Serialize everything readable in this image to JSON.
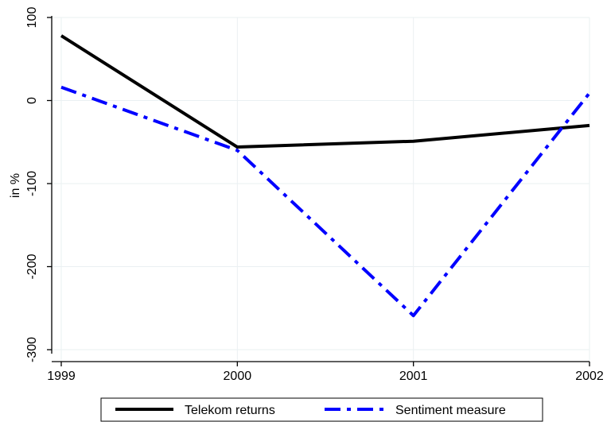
{
  "chart_data": {
    "type": "line",
    "title": "",
    "xlabel": "",
    "ylabel": "in %",
    "x": [
      1999,
      2000,
      2001,
      2002
    ],
    "xticks": [
      "1999",
      "2000",
      "2001",
      "2002"
    ],
    "yticks": [
      100,
      0,
      -100,
      -200,
      -300
    ],
    "xlim": [
      1999,
      2002
    ],
    "ylim": [
      -300,
      100
    ],
    "grid": true,
    "legend_position": "bottom",
    "series": [
      {
        "name": "Telekom returns",
        "values": [
          78,
          -56,
          -49,
          -30
        ],
        "color": "#000000",
        "style": "solid"
      },
      {
        "name": "Sentiment measure",
        "values": [
          16,
          -60,
          -259,
          9
        ],
        "color": "#0000ff",
        "style": "dash-dot"
      }
    ]
  }
}
